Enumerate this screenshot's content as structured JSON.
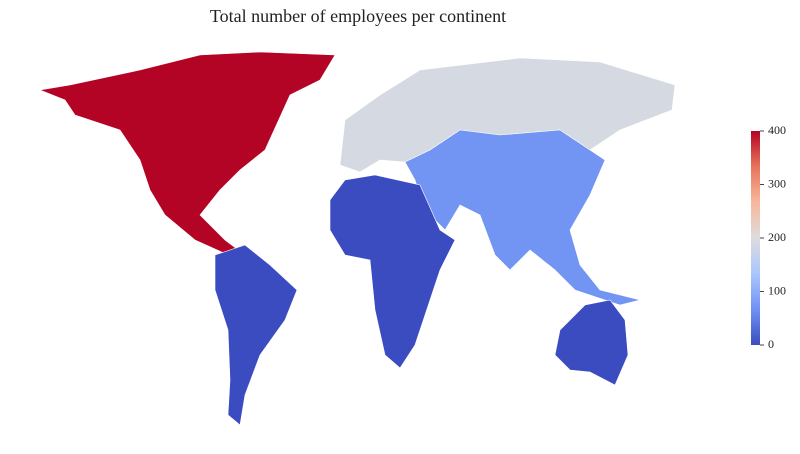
{
  "chart_data": {
    "type": "choropleth",
    "title": "Total number of employees per continent",
    "values": [
      400,
      190,
      70,
      0,
      0,
      0
    ],
    "colormap": [
      "#3b4cc0",
      "#6f92f3",
      "#aac7fd",
      "#dddcdc",
      "#f7b89c",
      "#e7745b",
      "#b40426"
    ],
    "clim": [
      0,
      400
    ],
    "cticks": [
      0,
      100,
      200,
      300,
      400
    ]
  }
}
